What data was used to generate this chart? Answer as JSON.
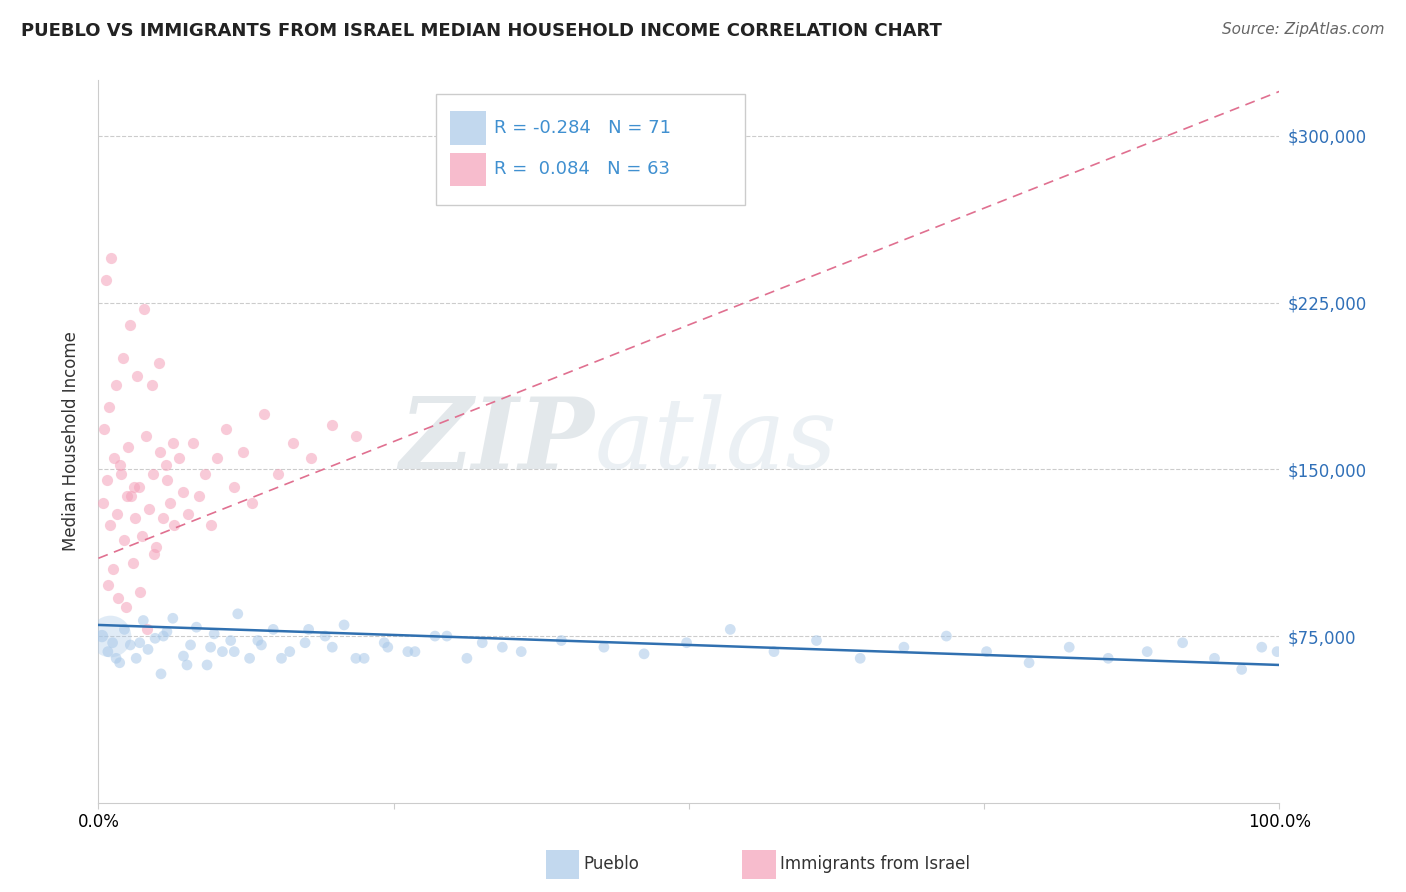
{
  "title": "PUEBLO VS IMMIGRANTS FROM ISRAEL MEDIAN HOUSEHOLD INCOME CORRELATION CHART",
  "source": "Source: ZipAtlas.com",
  "ylabel": "Median Household Income",
  "xlim": [
    0,
    1.0
  ],
  "ylim": [
    0,
    325000
  ],
  "pueblo_color": "#a8c8e8",
  "israel_color": "#f4a0b8",
  "trend_blue_color": "#3070b0",
  "trend_pink_color": "#e07090",
  "blue_intercept": 80000,
  "blue_slope": -18000,
  "pink_intercept": 110000,
  "pink_slope": 210000,
  "watermark_ZIP": "#b8c8d8",
  "watermark_atlas": "#c8d8e8",
  "legend_blue_R": "-0.284",
  "legend_blue_N": "71",
  "legend_pink_R": "0.084",
  "legend_pink_N": "63",
  "legend_blue_color": "#4090d0",
  "legend_pink_color": "#e06080",
  "pueblo_x": [
    0.003,
    0.008,
    0.012,
    0.018,
    0.022,
    0.027,
    0.032,
    0.038,
    0.042,
    0.048,
    0.053,
    0.058,
    0.063,
    0.072,
    0.078,
    0.083,
    0.092,
    0.098,
    0.105,
    0.112,
    0.118,
    0.128,
    0.138,
    0.148,
    0.162,
    0.175,
    0.192,
    0.208,
    0.225,
    0.245,
    0.268,
    0.295,
    0.325,
    0.358,
    0.392,
    0.428,
    0.462,
    0.498,
    0.535,
    0.572,
    0.608,
    0.645,
    0.682,
    0.718,
    0.752,
    0.788,
    0.822,
    0.855,
    0.888,
    0.918,
    0.945,
    0.968,
    0.985,
    0.998,
    0.015,
    0.035,
    0.055,
    0.075,
    0.095,
    0.115,
    0.135,
    0.155,
    0.178,
    0.198,
    0.218,
    0.242,
    0.262,
    0.285,
    0.312,
    0.342,
    0.01
  ],
  "pueblo_y": [
    75000,
    68000,
    72000,
    63000,
    78000,
    71000,
    65000,
    82000,
    69000,
    74000,
    58000,
    77000,
    83000,
    66000,
    71000,
    79000,
    62000,
    76000,
    68000,
    73000,
    85000,
    65000,
    71000,
    78000,
    68000,
    72000,
    75000,
    80000,
    65000,
    70000,
    68000,
    75000,
    72000,
    68000,
    73000,
    70000,
    67000,
    72000,
    78000,
    68000,
    73000,
    65000,
    70000,
    75000,
    68000,
    63000,
    70000,
    65000,
    68000,
    72000,
    65000,
    60000,
    70000,
    68000,
    65000,
    72000,
    75000,
    62000,
    70000,
    68000,
    73000,
    65000,
    78000,
    70000,
    65000,
    72000,
    68000,
    75000,
    65000,
    70000,
    75000
  ],
  "pueblo_sizes": [
    80,
    60,
    60,
    60,
    60,
    60,
    60,
    60,
    60,
    60,
    60,
    60,
    60,
    60,
    60,
    60,
    60,
    60,
    60,
    60,
    60,
    60,
    60,
    60,
    60,
    60,
    60,
    60,
    60,
    60,
    60,
    60,
    60,
    60,
    60,
    60,
    60,
    60,
    60,
    60,
    60,
    60,
    60,
    60,
    60,
    60,
    60,
    60,
    60,
    60,
    60,
    60,
    60,
    60,
    60,
    60,
    60,
    60,
    60,
    60,
    60,
    60,
    60,
    60,
    60,
    60,
    60,
    60,
    60,
    60,
    900
  ],
  "israel_x": [
    0.004,
    0.007,
    0.01,
    0.013,
    0.016,
    0.019,
    0.022,
    0.025,
    0.028,
    0.031,
    0.034,
    0.037,
    0.04,
    0.043,
    0.046,
    0.049,
    0.052,
    0.055,
    0.058,
    0.061,
    0.064,
    0.068,
    0.072,
    0.076,
    0.08,
    0.085,
    0.09,
    0.095,
    0.1,
    0.108,
    0.115,
    0.122,
    0.13,
    0.14,
    0.152,
    0.165,
    0.18,
    0.198,
    0.218,
    0.008,
    0.012,
    0.017,
    0.023,
    0.029,
    0.035,
    0.041,
    0.047,
    0.005,
    0.009,
    0.015,
    0.021,
    0.027,
    0.033,
    0.039,
    0.045,
    0.051,
    0.057,
    0.063,
    0.006,
    0.011,
    0.018,
    0.024,
    0.03
  ],
  "israel_y": [
    135000,
    145000,
    125000,
    155000,
    130000,
    148000,
    118000,
    160000,
    138000,
    128000,
    142000,
    120000,
    165000,
    132000,
    148000,
    115000,
    158000,
    128000,
    145000,
    135000,
    125000,
    155000,
    140000,
    130000,
    162000,
    138000,
    148000,
    125000,
    155000,
    168000,
    142000,
    158000,
    135000,
    175000,
    148000,
    162000,
    155000,
    170000,
    165000,
    98000,
    105000,
    92000,
    88000,
    108000,
    95000,
    78000,
    112000,
    168000,
    178000,
    188000,
    200000,
    215000,
    192000,
    222000,
    188000,
    198000,
    152000,
    162000,
    235000,
    245000,
    152000,
    138000,
    142000
  ]
}
